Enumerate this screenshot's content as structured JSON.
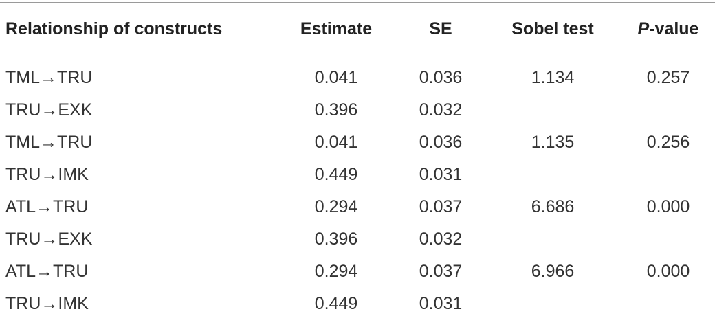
{
  "table": {
    "header": {
      "relationship": "Relationship of constructs",
      "estimate": "Estimate",
      "se": "SE",
      "sobel": "Sobel test",
      "p": {
        "italic": "P",
        "text": "-value"
      }
    },
    "rows": [
      {
        "relationship": "TML→TRU",
        "estimate": "0.041",
        "se": "0.036",
        "sobel": "1.134",
        "p": "0.257"
      },
      {
        "relationship": "TRU→EXK",
        "estimate": "0.396",
        "se": "0.032"
      },
      {
        "relationship": "TML→TRU",
        "estimate": "0.041",
        "se": "0.036",
        "sobel": "1.135",
        "p": "0.256"
      },
      {
        "relationship": "TRU→IMK",
        "estimate": "0.449",
        "se": "0.031"
      },
      {
        "relationship": "ATL→TRU",
        "estimate": "0.294",
        "se": "0.037",
        "sobel": "6.686",
        "p": "0.000"
      },
      {
        "relationship": "TRU→EXK",
        "estimate": "0.396",
        "se": "0.032"
      },
      {
        "relationship": "ATL→TRU",
        "estimate": "0.294",
        "se": "0.037",
        "sobel": "6.966",
        "p": "0.000"
      },
      {
        "relationship": "TRU→IMK",
        "estimate": "0.449",
        "se": "0.031"
      }
    ]
  }
}
